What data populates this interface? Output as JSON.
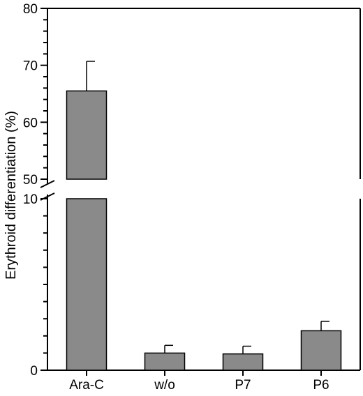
{
  "chart_data": {
    "type": "bar",
    "ylabel": "Erythroid differentiation (%)",
    "categories": [
      "Ara-C",
      "w/o",
      "P7",
      "P6"
    ],
    "values": [
      65.5,
      1.0,
      0.95,
      2.3
    ],
    "errors": [
      5.2,
      0.45,
      0.45,
      0.55
    ],
    "bar_color": "#8a8a8a",
    "y_axis_break": true,
    "lower_segment": {
      "ylim": [
        0,
        10
      ],
      "ticks": [
        0,
        10
      ]
    },
    "upper_segment": {
      "ylim": [
        50,
        80
      ],
      "ticks": [
        50,
        60,
        70,
        80
      ]
    },
    "grid": false,
    "legend": "none"
  }
}
